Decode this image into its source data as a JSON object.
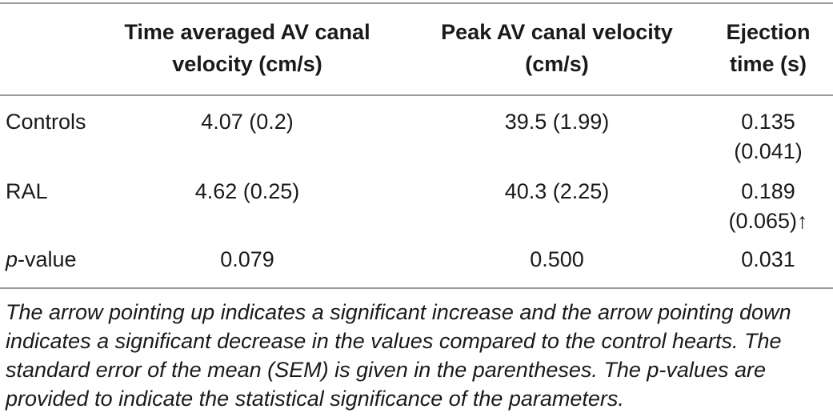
{
  "table": {
    "headers": [
      "Time averaged AV canal velocity (cm/s)",
      "Peak AV canal velocity (cm/s)",
      "Ejection time (s)"
    ],
    "rows": [
      {
        "label": "Controls",
        "values": [
          "4.07 (0.2)",
          "39.5 (1.99)",
          "0.135 (0.041)"
        ]
      },
      {
        "label": "RAL",
        "values": [
          "4.62 (0.25)",
          "40.3 (2.25)",
          "0.189 (0.065)↑"
        ]
      },
      {
        "label_italic": "p",
        "label_rest": "-value",
        "values": [
          "0.079",
          "0.500",
          "0.031"
        ]
      }
    ]
  },
  "footnote": "The arrow pointing up indicates a significant increase and the arrow pointing down indicates a significant decrease in the values compared to the control hearts. The standard error of the mean (SEM) is given in the parentheses. The p-values are provided to indicate the statistical significance of the parameters."
}
